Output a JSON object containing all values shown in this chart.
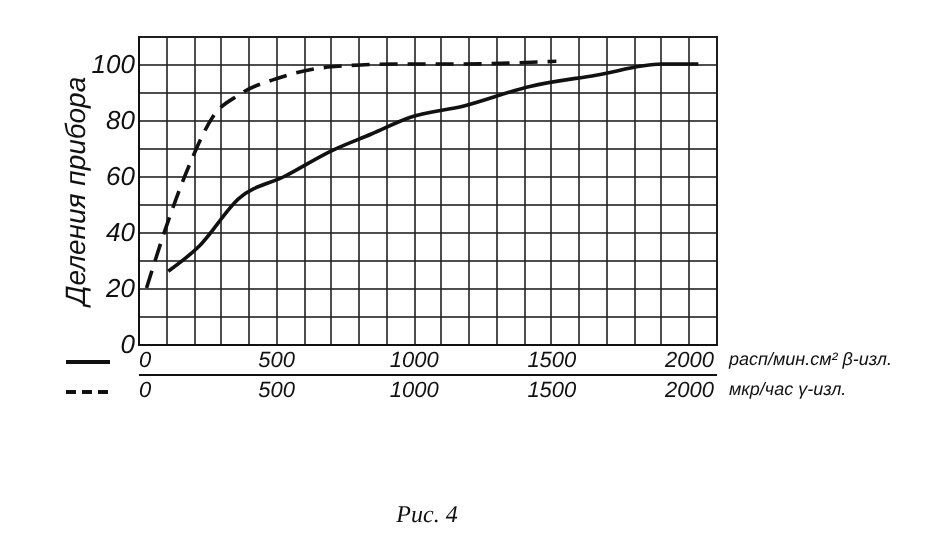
{
  "chart_data": {
    "type": "line",
    "ylabel": "Деления прибора",
    "xlabel": "расп/мин.см² β-изл.",
    "x2label": "мкр/час γ-изл.",
    "annotations": [
      "Рис. 4"
    ],
    "xlim": [
      0,
      2100
    ],
    "x2lim": [
      0,
      2100
    ],
    "ylim": [
      0,
      110
    ],
    "xticks": [
      0,
      {
        "value": 100,
        "label": null
      },
      {
        "value": 200,
        "label": null
      },
      {
        "value": 300,
        "label": null
      },
      {
        "value": 400,
        "label": null
      },
      500,
      {
        "value": 600,
        "label": null
      },
      {
        "value": 700,
        "label": null
      },
      {
        "value": 800,
        "label": null
      },
      {
        "value": 900,
        "label": null
      },
      1000,
      {
        "value": 1100,
        "label": null
      },
      {
        "value": 1200,
        "label": null
      },
      {
        "value": 1300,
        "label": null
      },
      {
        "value": 1400,
        "label": null
      },
      1500,
      {
        "value": 1600,
        "label": null
      },
      {
        "value": 1700,
        "label": null
      },
      {
        "value": 1800,
        "label": null
      },
      {
        "value": 1900,
        "label": null
      },
      2000,
      {
        "value": 2100,
        "label": null
      }
    ],
    "x2ticks": [
      0,
      500,
      1000,
      1500,
      2000
    ],
    "yticks": [
      0,
      {
        "value": 10,
        "label": null
      },
      20,
      {
        "value": 30,
        "label": null
      },
      40,
      {
        "value": 50,
        "label": null
      },
      60,
      {
        "value": 70,
        "label": null
      },
      80,
      {
        "value": 90,
        "label": null
      },
      100,
      {
        "value": 110,
        "label": null
      }
    ],
    "grid": true,
    "series": [
      {
        "color": "#111111",
        "line_style": "solid",
        "x": [
          110,
          223,
          367,
          535,
          703,
          848,
          990,
          1184,
          1424,
          1664,
          1904,
          2036
        ],
        "values": [
          26,
          35,
          52,
          60,
          69,
          75,
          81,
          85,
          92,
          96,
          100,
          100
        ]
      },
      {
        "color": "#111111",
        "line_style": "dashed",
        "axis": "x2",
        "x": [
          31,
          103,
          187,
          271,
          367,
          511,
          703,
          943,
          1184,
          1520
        ],
        "values": [
          20,
          42,
          64,
          81,
          89,
          95,
          99,
          100,
          100,
          101
        ]
      }
    ]
  }
}
